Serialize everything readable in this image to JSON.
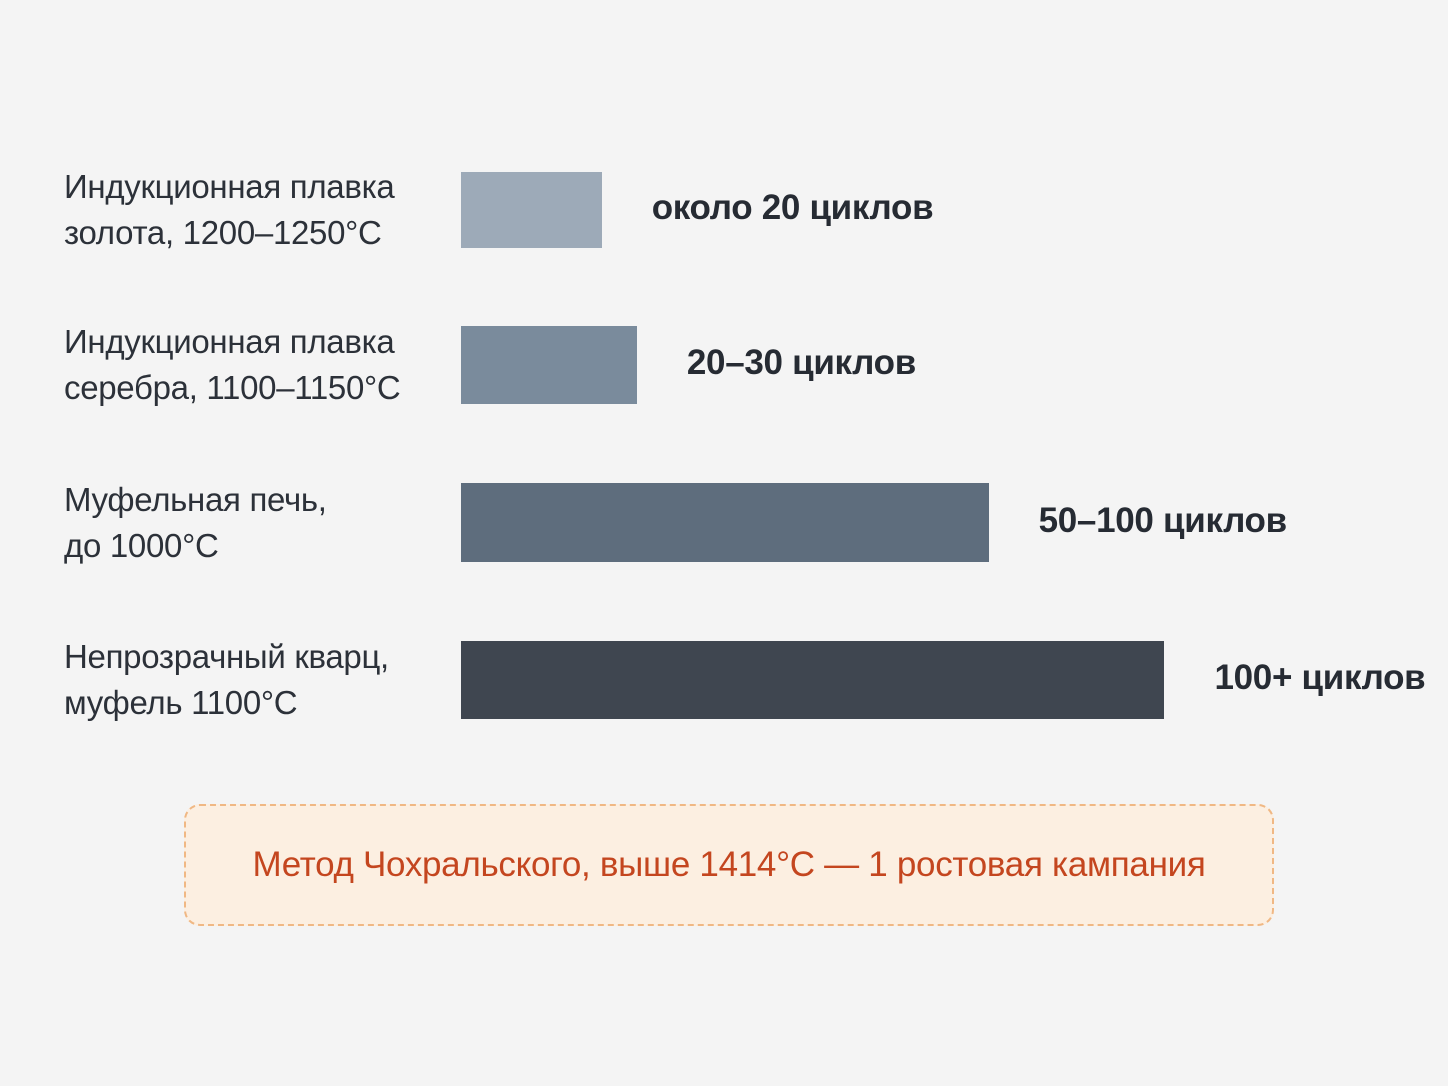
{
  "chart_data": {
    "type": "bar",
    "orientation": "horizontal",
    "grid": false,
    "categories": [
      [
        "Индукционная плавка",
        "золота, 1200–1250°C"
      ],
      [
        "Индукционная плавка",
        "серебра, 1100–1150°C"
      ],
      [
        "Муфельная печь,",
        "до 1000°C"
      ],
      [
        "Непрозрачный кварц,",
        "муфель 1100°C"
      ]
    ],
    "value_labels": [
      "около 20 циклов",
      "20–30 циклов",
      "50–100 циклов",
      "100+ циклов"
    ],
    "values": [
      20,
      25,
      75,
      100
    ],
    "xlim": [
      0,
      115
    ],
    "colors": [
      "#9daab8",
      "#7a8b9c",
      "#5e6d7d",
      "#3f4650"
    ],
    "annotation": "Метод Чохральского, выше 1414°C — 1 ростовая кампания"
  }
}
